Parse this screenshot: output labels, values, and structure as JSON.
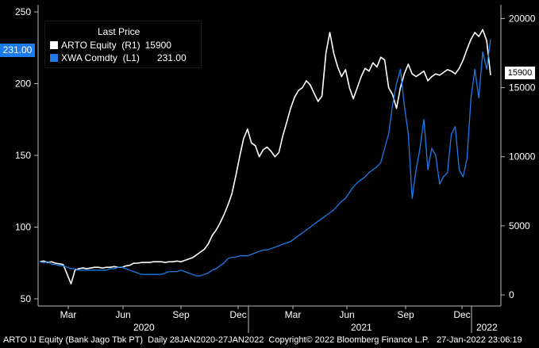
{
  "chart_data": {
    "type": "line",
    "legend_title": "Last Price",
    "legend_placement": "top-left",
    "grid": false,
    "x_month_ticks": [
      "Mar",
      "Jun",
      "Sep",
      "Dec",
      "Mar",
      "Jun",
      "Sep",
      "Dec"
    ],
    "x_year_labels": [
      "2020",
      "2021",
      "2022"
    ],
    "left_axis": {
      "ticks": [
        "50",
        "100",
        "150",
        "200",
        "250"
      ],
      "ylim": [
        45,
        255
      ]
    },
    "right_axis": {
      "ticks": [
        "0",
        "5000",
        "10000",
        "15000",
        "20000"
      ],
      "ylim": [
        -800,
        21000
      ]
    },
    "series": [
      {
        "name": "ARTO Equity  (R1)",
        "last_value": "15900",
        "axis": "right",
        "color": "#ffffff",
        "values": [
          2400,
          2450,
          2350,
          2400,
          2300,
          2250,
          2200,
          1500,
          800,
          1800,
          1900,
          1950,
          1900,
          1950,
          2000,
          2000,
          1950,
          2000,
          2000,
          2050,
          2000,
          2000,
          2100,
          2150,
          2300,
          2300,
          2350,
          2350,
          2350,
          2400,
          2400,
          2400,
          2350,
          2400,
          2400,
          2450,
          2400,
          2500,
          2600,
          2700,
          2900,
          3100,
          3300,
          3700,
          4300,
          4700,
          5200,
          5800,
          6500,
          7300,
          8600,
          10000,
          11300,
          12000,
          11000,
          10800,
          10000,
          10500,
          10700,
          10400,
          10000,
          10300,
          11500,
          12500,
          13500,
          14300,
          14800,
          15000,
          15500,
          15200,
          14600,
          14000,
          14400,
          17500,
          19000,
          17500,
          16500,
          15800,
          16300,
          15000,
          14200,
          15000,
          15800,
          16400,
          16200,
          16800,
          16500,
          17200,
          17000,
          15000,
          14500,
          13500,
          15000,
          16000,
          16700,
          16000,
          15800,
          16000,
          16200,
          15500,
          15800,
          16000,
          15900,
          16100,
          16300,
          16200,
          16000,
          16400,
          17000,
          17800,
          18500,
          19000,
          18700,
          19200,
          18400,
          15900
        ]
      },
      {
        "name": "XWA Comdty  (L1)",
        "last_value": "231.00",
        "axis": "left",
        "color": "#1c7be8",
        "values": [
          76,
          75,
          76,
          74,
          74,
          73,
          73,
          72,
          71,
          71,
          70,
          70,
          70,
          70,
          70,
          70,
          70,
          70,
          71,
          71,
          72,
          72,
          71,
          70,
          69,
          68,
          67,
          67,
          67,
          67,
          67,
          67,
          68,
          69,
          69,
          69,
          70,
          69,
          68,
          67,
          66,
          66,
          67,
          68,
          70,
          71,
          73,
          75,
          78,
          79,
          79,
          80,
          80,
          80,
          81,
          82,
          83,
          84,
          84,
          85,
          86,
          87,
          88,
          89,
          90,
          92,
          94,
          96,
          98,
          100,
          102,
          104,
          106,
          108,
          110,
          112,
          115,
          118,
          120,
          124,
          128,
          131,
          133,
          135,
          138,
          140,
          142,
          145,
          155,
          165,
          185,
          200,
          210,
          185,
          165,
          120,
          140,
          155,
          175,
          140,
          155,
          150,
          130,
          135,
          138,
          165,
          170,
          140,
          135,
          148,
          190,
          210,
          190,
          222,
          210,
          231
        ]
      }
    ]
  },
  "legend": {
    "title": "Last Price"
  },
  "badges": {
    "left": "231.00",
    "right": "15900"
  },
  "footer": "ARTO IJ Equity (Bank Jago Tbk PT)  Daily 28JAN2020-27JAN2022  Copyright© 2022 Bloomberg Finance L.P.   27-Jan-2022 23:06:19"
}
